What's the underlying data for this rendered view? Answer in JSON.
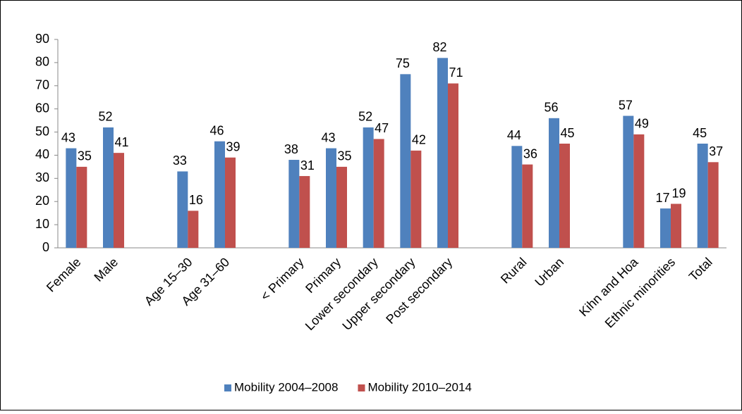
{
  "chart_data": {
    "type": "bar",
    "categories": [
      "Female",
      "Male",
      null,
      "Age 15–30",
      "Age 31–60",
      null,
      "< Primary",
      "Primary",
      "Lower secondary",
      "Upper secondary",
      "Post secondary",
      null,
      "Rural",
      "Urban",
      null,
      "Kihn and Hoa",
      "Ethnic minorities",
      "Total"
    ],
    "series": [
      {
        "name": "Mobility 2004–2008",
        "color": "#4f81bd",
        "values": [
          43,
          52,
          null,
          33,
          46,
          null,
          38,
          43,
          52,
          75,
          82,
          null,
          44,
          56,
          null,
          57,
          17,
          45
        ]
      },
      {
        "name": "Mobility 2010–2014",
        "color": "#c0504d",
        "values": [
          35,
          41,
          null,
          16,
          39,
          null,
          31,
          35,
          47,
          42,
          71,
          null,
          36,
          45,
          null,
          49,
          19,
          37
        ]
      }
    ],
    "ylim": [
      0,
      90
    ],
    "yticks": [
      0,
      10,
      20,
      30,
      40,
      50,
      60,
      70,
      80,
      90
    ],
    "legend": "bottom"
  }
}
